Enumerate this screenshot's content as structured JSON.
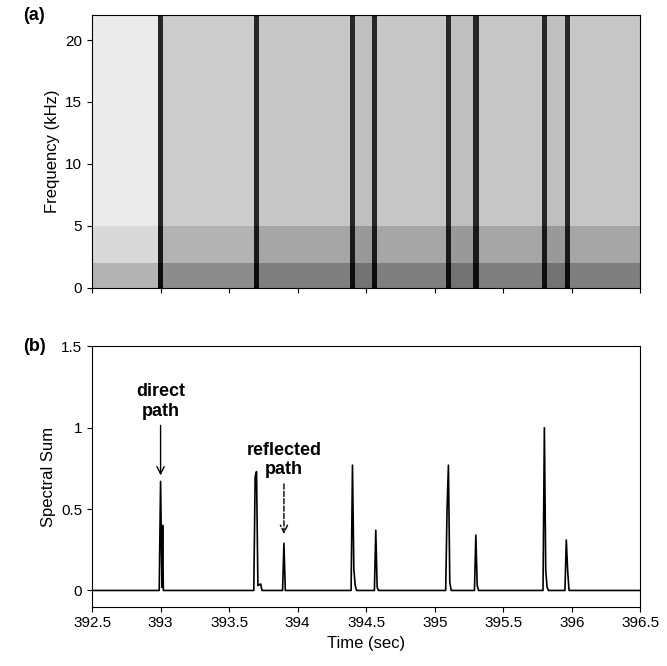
{
  "chart_data": [
    {
      "type": "heatmap",
      "label": "(a)",
      "y_label": "Frequency (kHz)",
      "time_edges": [
        392.5,
        392.98,
        393.02,
        393.68,
        393.72,
        394.38,
        394.42,
        394.54,
        394.58,
        395.08,
        395.12,
        395.28,
        395.32,
        395.78,
        395.82,
        395.95,
        395.99,
        396.5
      ],
      "frequency_edges": [
        0,
        2,
        5,
        22
      ],
      "cells": [
        [
          0.3,
          0.95,
          0.45,
          0.95,
          0.5,
          0.95,
          0.55,
          0.95,
          0.5,
          0.95,
          0.55,
          0.95,
          0.5,
          0.95,
          0.55,
          0.95,
          0.5
        ],
        [
          0.15,
          0.9,
          0.3,
          0.9,
          0.35,
          0.9,
          0.4,
          0.9,
          0.35,
          0.9,
          0.4,
          0.9,
          0.35,
          0.9,
          0.4,
          0.9,
          0.35
        ],
        [
          0.08,
          0.85,
          0.2,
          0.85,
          0.22,
          0.85,
          0.25,
          0.85,
          0.22,
          0.85,
          0.25,
          0.85,
          0.22,
          0.85,
          0.25,
          0.85,
          0.22
        ]
      ],
      "cell_range": [
        0,
        1
      ],
      "xlim": [
        392.5,
        396.5
      ],
      "xticks": [
        392.5,
        393,
        393.5,
        394,
        394.5,
        395,
        395.5,
        396,
        396.5
      ],
      "ylim": [
        0,
        22
      ],
      "yticks": [
        0,
        5,
        10,
        15,
        20
      ],
      "tick_labels": "y"
    },
    {
      "type": "line",
      "label": "(b)",
      "x_label": "Time (sec)",
      "y_label": "Spectral Sum",
      "color": "#000000",
      "x": [
        392.5,
        392.99,
        393.0,
        393.01,
        393.015,
        393.02,
        393.68,
        393.69,
        393.7,
        393.71,
        393.73,
        393.74,
        393.89,
        393.9,
        393.91,
        394.39,
        394.4,
        394.41,
        394.42,
        394.43,
        394.56,
        394.57,
        394.58,
        394.59,
        395.08,
        395.09,
        395.1,
        395.11,
        395.12,
        395.29,
        395.3,
        395.31,
        395.32,
        395.79,
        395.8,
        395.81,
        395.82,
        395.83,
        395.95,
        395.96,
        395.97,
        395.98,
        396.5
      ],
      "values": [
        0,
        0,
        0.67,
        0.02,
        0.4,
        0,
        0,
        0.7,
        0.73,
        0.03,
        0.04,
        0,
        0,
        0.29,
        0,
        0,
        0.77,
        0.13,
        0.03,
        0,
        0,
        0.37,
        0.02,
        0,
        0,
        0.5,
        0.77,
        0.05,
        0,
        0,
        0.34,
        0.03,
        0,
        0,
        1.0,
        0.12,
        0.02,
        0,
        0,
        0.31,
        0.12,
        0,
        0
      ],
      "annotations": [
        {
          "text": "direct\npath",
          "x": 393.0,
          "y": 0.69,
          "line_style": "solid"
        },
        {
          "text": "reflected\npath",
          "x": 393.9,
          "y": 0.33,
          "line_style": "dashed"
        }
      ],
      "xlim": [
        392.5,
        396.5
      ],
      "xticks": [
        392.5,
        393,
        393.5,
        394,
        394.5,
        395,
        395.5,
        396,
        396.5
      ],
      "ylim": [
        -0.1,
        1.5
      ],
      "yticks": [
        0,
        0.5,
        1,
        1.5
      ]
    }
  ]
}
